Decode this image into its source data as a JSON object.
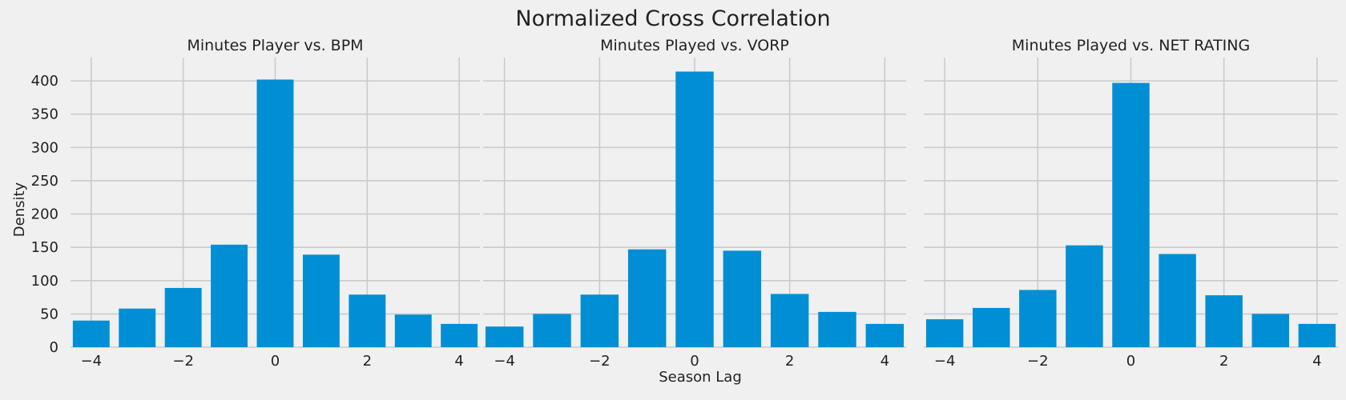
{
  "figure": {
    "title": "Normalized Cross Correlation",
    "xlabel": "Season Lag",
    "ylabel": "Density"
  },
  "colors": {
    "background": "#f0f0f0",
    "grid": "#cbcbcb",
    "bar": "#008fd5",
    "text": "#222222"
  },
  "chart_data": [
    {
      "type": "bar",
      "title": "Minutes Player vs. BPM",
      "x": [
        -4,
        -3,
        -2,
        -1,
        0,
        1,
        2,
        3,
        4
      ],
      "values": [
        40,
        58,
        89,
        154,
        402,
        139,
        79,
        49,
        35
      ],
      "xticks": [
        -4,
        -2,
        0,
        2,
        4
      ],
      "xtick_labels": [
        "−4",
        "−2",
        "0",
        "2",
        "4"
      ],
      "yticks": [
        0,
        50,
        100,
        150,
        200,
        250,
        300,
        350,
        400
      ],
      "ytick_labels": [
        "0",
        "50",
        "100",
        "150",
        "200",
        "250",
        "300",
        "350",
        "400"
      ],
      "xlim": [
        -4.45,
        4.45
      ],
      "ylim": [
        0,
        435
      ],
      "grid": true
    },
    {
      "type": "bar",
      "title": "Minutes Played vs. VORP",
      "x": [
        -4,
        -3,
        -2,
        -1,
        0,
        1,
        2,
        3,
        4
      ],
      "values": [
        31,
        50,
        79,
        147,
        414,
        145,
        80,
        53,
        35
      ],
      "xticks": [
        -4,
        -2,
        0,
        2,
        4
      ],
      "xtick_labels": [
        "−4",
        "−2",
        "0",
        "2",
        "4"
      ],
      "yticks": [
        0,
        50,
        100,
        150,
        200,
        250,
        300,
        350,
        400
      ],
      "ytick_labels": [],
      "xlim": [
        -4.45,
        4.45
      ],
      "ylim": [
        0,
        435
      ],
      "grid": true
    },
    {
      "type": "bar",
      "title": "Minutes Played vs. NET RATING",
      "x": [
        -4,
        -3,
        -2,
        -1,
        0,
        1,
        2,
        3,
        4
      ],
      "values": [
        42,
        59,
        86,
        153,
        397,
        140,
        78,
        50,
        35
      ],
      "xticks": [
        -4,
        -2,
        0,
        2,
        4
      ],
      "xtick_labels": [
        "−4",
        "−2",
        "0",
        "2",
        "4"
      ],
      "yticks": [
        0,
        50,
        100,
        150,
        200,
        250,
        300,
        350,
        400
      ],
      "ytick_labels": [],
      "xlim": [
        -4.45,
        4.45
      ],
      "ylim": [
        0,
        435
      ],
      "grid": true
    }
  ]
}
